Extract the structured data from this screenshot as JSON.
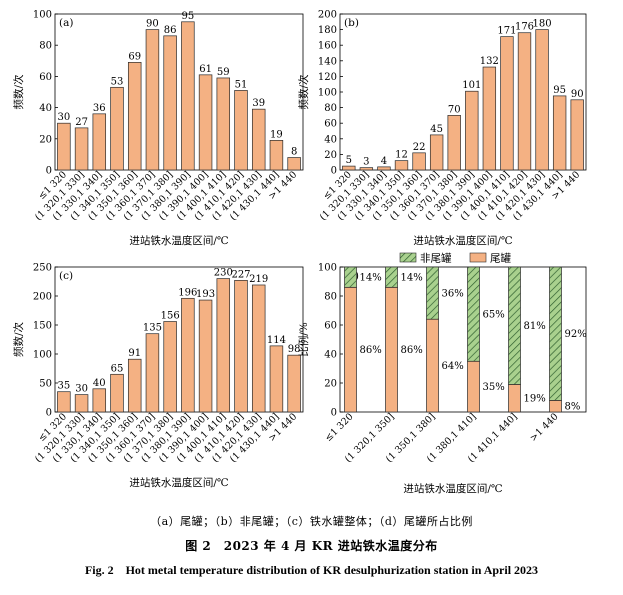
{
  "colors": {
    "bar_fill": "#F4B183",
    "bar_stroke": "#2b2b2b",
    "hatch_fill": "#A9D18E",
    "hatch_line": "#2e5e2e"
  },
  "chart_data": [
    {
      "type": "bar",
      "panel_label": "(a)",
      "categories": [
        "≤1 320",
        "(1 320,1 330]",
        "(1 330,1 340]",
        "(1 340,1 350]",
        "(1 350,1 360]",
        "(1 360,1 370]",
        "(1 370,1 380]",
        "(1 380,1 390]",
        "(1 390,1 400]",
        "(1 400,1 410]",
        "(1 410,1 420]",
        "(1 420,1 430]",
        "(1 430,1 440]",
        ">1 440"
      ],
      "values": [
        30,
        27,
        36,
        53,
        69,
        90,
        86,
        95,
        61,
        59,
        51,
        39,
        19,
        8
      ],
      "xlabel": "进站铁水温度区间/℃",
      "ylabel": "频数/次",
      "ylim": [
        0,
        100
      ],
      "yticks": [
        0,
        20,
        40,
        60,
        80,
        100
      ]
    },
    {
      "type": "bar",
      "panel_label": "(b)",
      "categories": [
        "≤1 320",
        "(1 320,1 330]",
        "(1 330,1 340]",
        "(1 340,1 350]",
        "(1 350,1 360]",
        "(1 360,1 370]",
        "(1 370,1 380]",
        "(1 380,1 390]",
        "(1 390,1 400]",
        "(1 400,1 410]",
        "(1 410,1 420]",
        "(1 420,1 430]",
        "(1 430,1 440]",
        ">1 440"
      ],
      "values": [
        5,
        3,
        4,
        12,
        22,
        45,
        70,
        101,
        132,
        171,
        176,
        180,
        95,
        90
      ],
      "xlabel": "进站铁水温度区间/℃",
      "ylabel": "频数/次",
      "ylim": [
        0,
        200
      ],
      "yticks": [
        0,
        20,
        40,
        60,
        80,
        100,
        120,
        140,
        160,
        180,
        200
      ]
    },
    {
      "type": "bar",
      "panel_label": "(c)",
      "categories": [
        "≤1 320",
        "(1 320,1 330]",
        "(1 330,1 340]",
        "(1 340,1 350]",
        "(1 350,1 360]",
        "(1 360,1 370]",
        "(1 370,1 380]",
        "(1 380,1 390]",
        "(1 390,1 400]",
        "(1 400,1 410]",
        "(1 410,1 420]",
        "(1 420,1 430]",
        "(1 430,1 440]",
        ">1 440"
      ],
      "values": [
        35,
        30,
        40,
        65,
        91,
        135,
        156,
        196,
        193,
        230,
        227,
        219,
        114,
        98
      ],
      "xlabel": "进站铁水温度区间/℃",
      "ylabel": "频数/次",
      "ylim": [
        0,
        250
      ],
      "yticks": [
        0,
        50,
        100,
        150,
        200,
        250
      ]
    },
    {
      "type": "bar",
      "stacked": true,
      "panel_label": "(d)",
      "categories": [
        "≤1 320",
        "(1 320,1 350]",
        "(1 350,1 380]",
        "(1 380,1 410]",
        "(1 410,1 440]",
        ">1 440"
      ],
      "series": [
        {
          "name": "尾罐",
          "values": [
            86,
            86,
            64,
            35,
            19,
            8
          ],
          "labels": [
            "86%",
            "86%",
            "64%",
            "35%",
            "19%",
            "8%"
          ]
        },
        {
          "name": "非尾罐",
          "values": [
            14,
            14,
            36,
            65,
            81,
            92
          ],
          "labels": [
            "14%",
            "14%",
            "36%",
            "65%",
            "81%",
            "92%"
          ]
        }
      ],
      "xlabel": "进站铁水温度区间/℃",
      "ylabel": "比例/%",
      "ylim": [
        0,
        100
      ],
      "yticks": [
        0,
        20,
        40,
        60,
        80,
        100
      ],
      "legend": "top"
    }
  ],
  "captions": {
    "subtitle": "（a）尾罐；（b）非尾罐；（c）铁水罐整体；（d）尾罐所占比例",
    "figure_zh": "图 2　2023 年 4 月 KR 进站铁水温度分布",
    "figure_en": "Fig. 2　Hot metal temperature distribution of KR desulphurization station in April 2023"
  }
}
